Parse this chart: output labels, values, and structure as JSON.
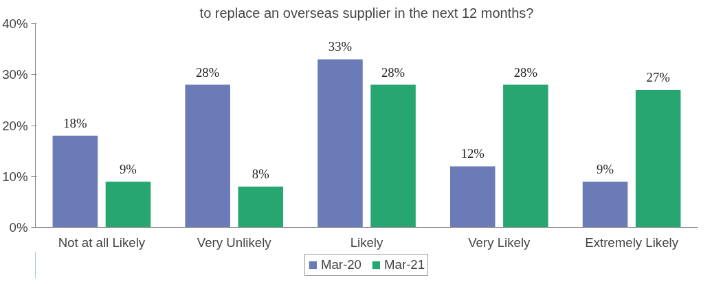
{
  "chart_data": {
    "type": "bar",
    "title": "to replace an overseas supplier in the next 12 months?",
    "categories": [
      "Not at all Likely",
      "Very Unlikely",
      "Likely",
      "Very Likely",
      "Extremely Likely"
    ],
    "series": [
      {
        "name": "Mar-20",
        "color": "#6b7bb8",
        "values": [
          18,
          28,
          33,
          12,
          9
        ],
        "value_labels": [
          "18%",
          "28%",
          "33%",
          "12%",
          "9%"
        ]
      },
      {
        "name": "Mar-21",
        "color": "#27a672",
        "values": [
          9,
          8,
          28,
          28,
          27
        ],
        "value_labels": [
          "9%",
          "8%",
          "28%",
          "28%",
          "27%"
        ]
      }
    ],
    "ylim": [
      0,
      40
    ],
    "yticks": [
      {
        "value": 0,
        "label": "0%"
      },
      {
        "value": 10,
        "label": "10%"
      },
      {
        "value": 20,
        "label": "20%"
      },
      {
        "value": 30,
        "label": "30%"
      },
      {
        "value": 40,
        "label": "40%"
      }
    ],
    "grid": false,
    "legend": "bottom"
  }
}
